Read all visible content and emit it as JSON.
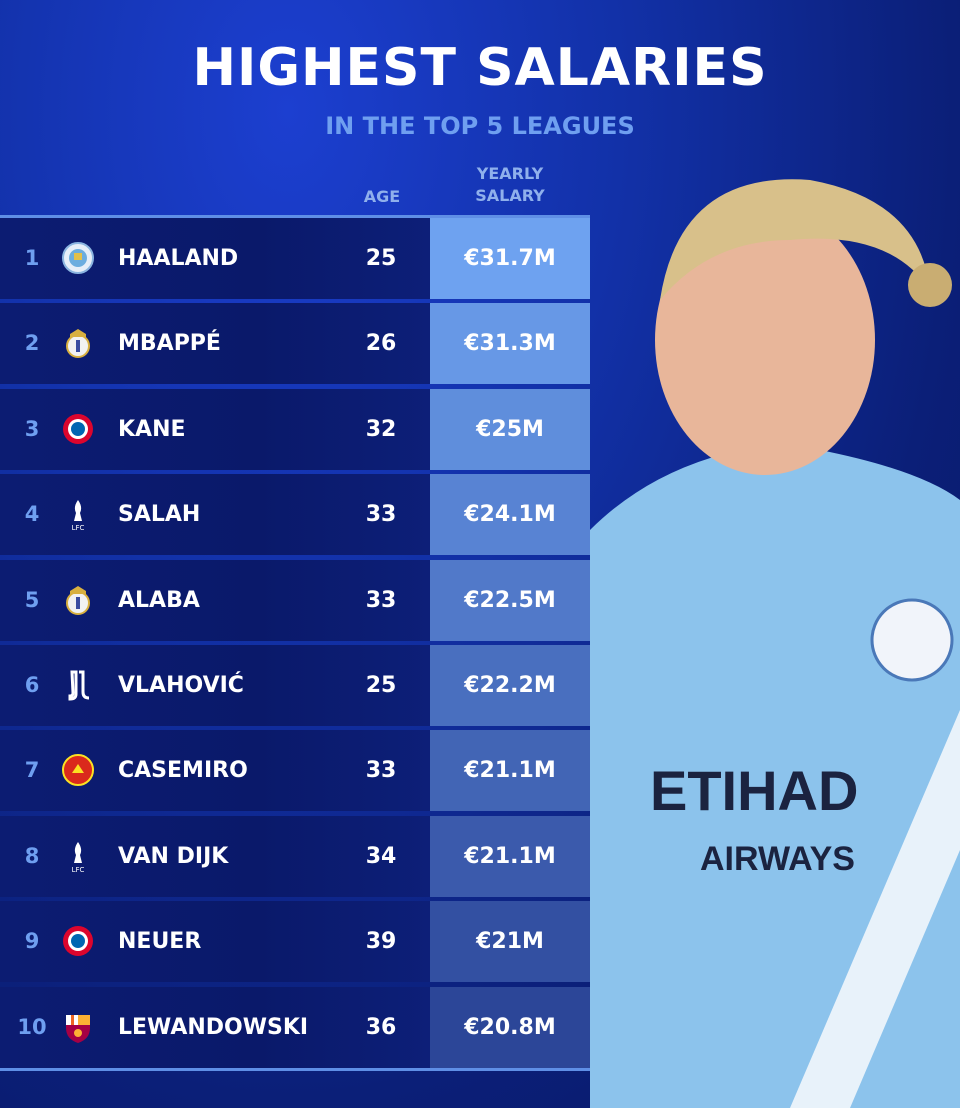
{
  "header": {
    "title": "HIGHEST SALARIES",
    "subtitle": "IN THE TOP 5 LEAGUES"
  },
  "columns": {
    "age": "AGE",
    "salary_line1": "YEARLY",
    "salary_line2": "SALARY"
  },
  "colors": {
    "salary_top": "#6ea2f0",
    "salary_bottom": "#2c4698",
    "rank": "#6f9ff0",
    "accent_line": "#5f8fe6"
  },
  "chart_data": {
    "type": "table",
    "title": "HIGHEST SALARIES",
    "subtitle": "IN THE TOP 5 LEAGUES",
    "columns": [
      "",
      "",
      "",
      "AGE",
      "YEARLY SALARY"
    ],
    "rows": [
      {
        "rank": "1",
        "club_icon": "manchester-city-crest",
        "name": "HAALAND",
        "age": "25",
        "salary": "€31.7M"
      },
      {
        "rank": "2",
        "club_icon": "real-madrid-crest",
        "name": "MBAPPÉ",
        "age": "26",
        "salary": "€31.3M"
      },
      {
        "rank": "3",
        "club_icon": "bayern-munich-crest",
        "name": "KANE",
        "age": "32",
        "salary": "€25M"
      },
      {
        "rank": "4",
        "club_icon": "liverpool-crest",
        "name": "SALAH",
        "age": "33",
        "salary": "€24.1M"
      },
      {
        "rank": "5",
        "club_icon": "real-madrid-crest",
        "name": "ALABA",
        "age": "33",
        "salary": "€22.5M"
      },
      {
        "rank": "6",
        "club_icon": "juventus-crest",
        "name": "VLAHOVIĆ",
        "age": "25",
        "salary": "€22.2M"
      },
      {
        "rank": "7",
        "club_icon": "manchester-united-crest",
        "name": "CASEMIRO",
        "age": "33",
        "salary": "€21.1M"
      },
      {
        "rank": "8",
        "club_icon": "liverpool-crest",
        "name": "VAN DIJK",
        "age": "34",
        "salary": "€21.1M"
      },
      {
        "rank": "9",
        "club_icon": "bayern-munich-crest",
        "name": "NEUER",
        "age": "39",
        "salary": "€21M"
      },
      {
        "rank": "10",
        "club_icon": "barcelona-crest",
        "name": "LEWANDOWSKI",
        "age": "36",
        "salary": "€20.8M"
      }
    ]
  }
}
